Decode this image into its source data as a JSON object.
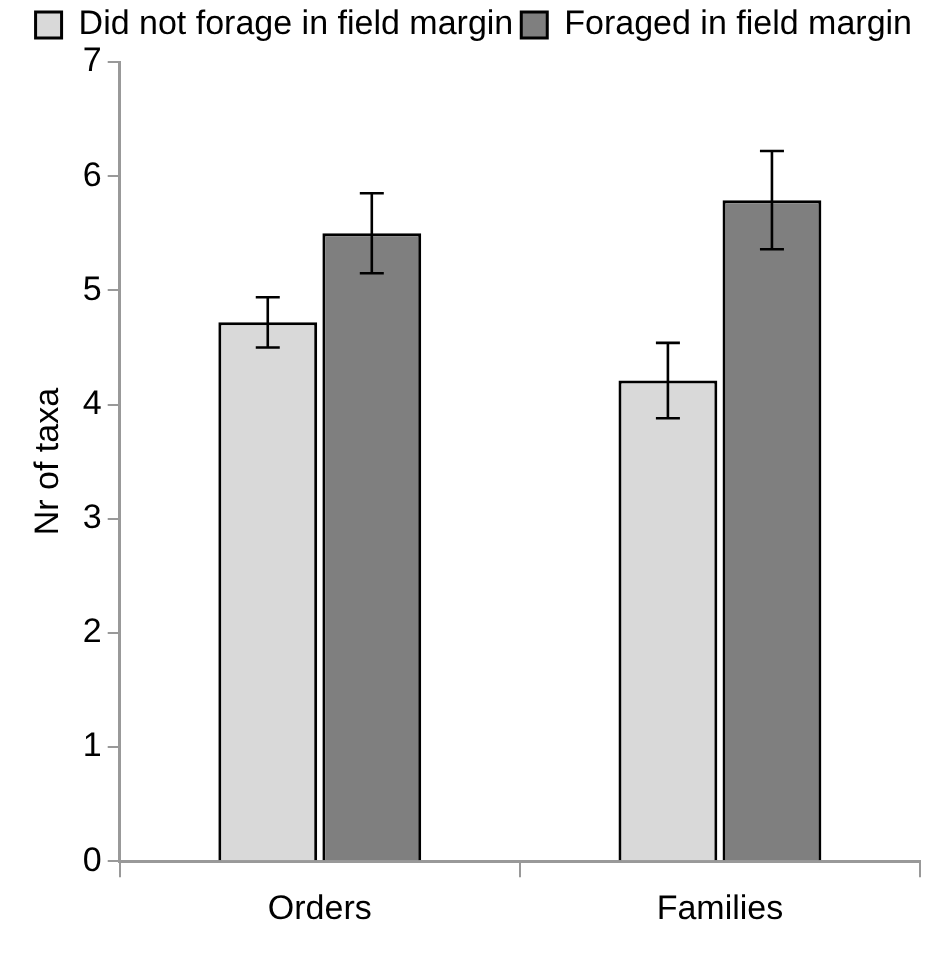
{
  "chart_data": {
    "type": "bar",
    "ylabel": "Nr of taxa",
    "categories": [
      "Orders",
      "Families"
    ],
    "series": [
      {
        "name": "Did not forage in field margin",
        "color": "#d9d9d9",
        "values": [
          4.72,
          4.21
        ],
        "errors": [
          0.22,
          0.33
        ]
      },
      {
        "name": "Foraged in field margin",
        "color": "#7f7f7f",
        "values": [
          5.5,
          5.79
        ],
        "errors": [
          0.35,
          0.43
        ]
      }
    ],
    "ylim": [
      0,
      7
    ],
    "yticks": [
      0,
      1,
      2,
      3,
      4,
      5,
      6,
      7
    ],
    "grid": false,
    "legend": "top"
  }
}
